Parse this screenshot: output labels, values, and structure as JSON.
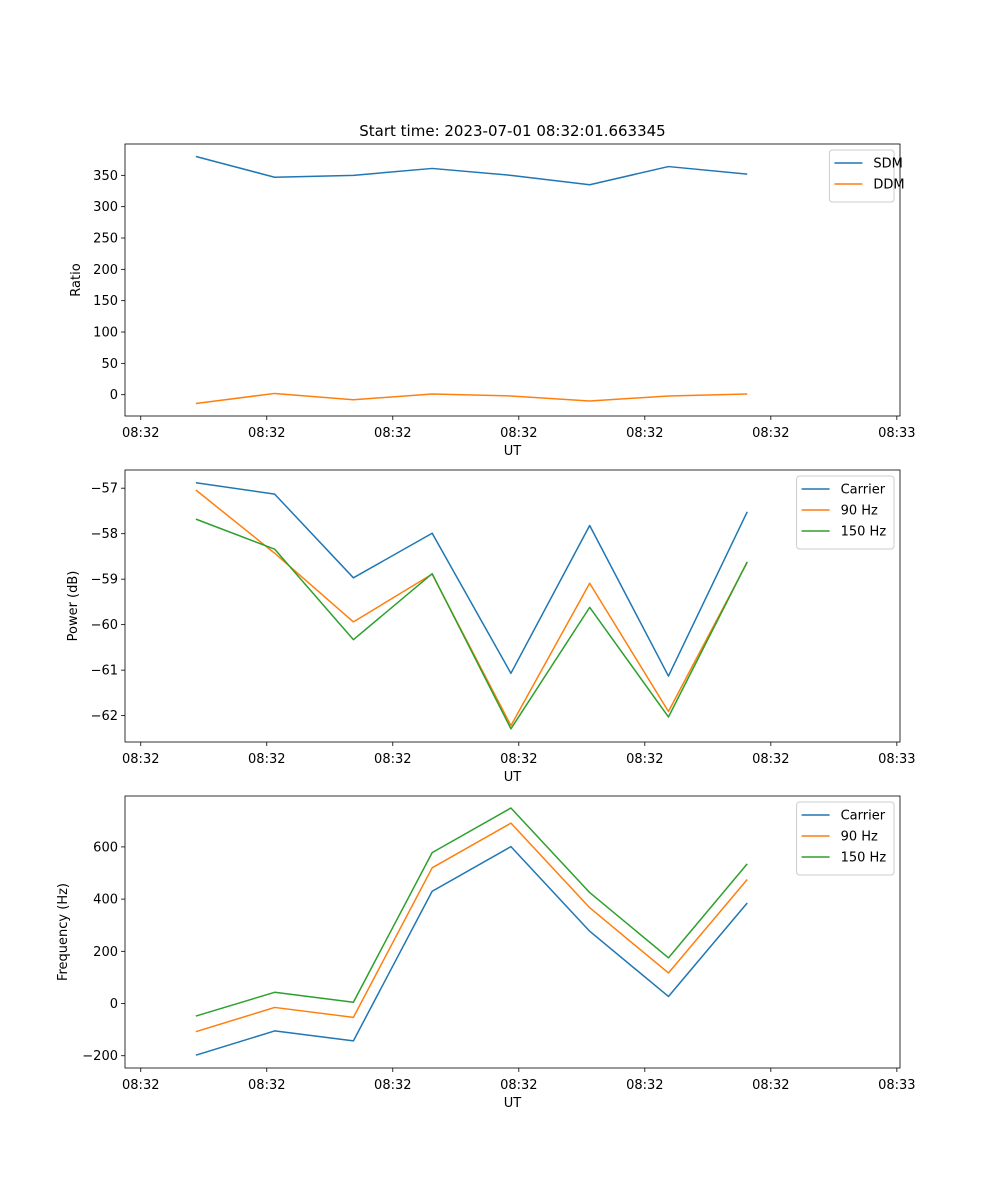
{
  "chart_data": [
    {
      "type": "line",
      "title": "Start time: 2023-07-01 08:32:01.663345",
      "xlabel": "UT",
      "ylabel": "Ratio",
      "x": [
        1.5,
        2.5,
        3.5,
        4.5,
        5.5,
        6.5,
        7.5,
        8.5
      ],
      "x_ticks": [
        0.8,
        2.4,
        4.0,
        5.6,
        7.2,
        8.8,
        10.4
      ],
      "x_tick_labels": [
        "08:32",
        "08:32",
        "08:32",
        "08:32",
        "08:32",
        "08:32",
        "08:33"
      ],
      "xlim": [
        0.6,
        10.44
      ],
      "ylim": [
        -34,
        400
      ],
      "y_ticks": [
        0,
        50,
        100,
        150,
        200,
        250,
        300,
        350
      ],
      "y_tick_labels": [
        "0",
        "50",
        "100",
        "150",
        "200",
        "250",
        "300",
        "350"
      ],
      "legend_position": "top-right",
      "series": [
        {
          "name": "SDM",
          "color": "#1f77b4",
          "values": [
            380,
            347,
            350,
            361,
            350,
            335,
            364,
            352
          ]
        },
        {
          "name": "DDM",
          "color": "#ff7f0e",
          "values": [
            -14,
            2,
            -8,
            1,
            -2,
            -10,
            -2,
            1
          ]
        }
      ]
    },
    {
      "type": "line",
      "title": "",
      "xlabel": "UT",
      "ylabel": "Power (dB)",
      "x": [
        1.5,
        2.5,
        3.5,
        4.5,
        5.5,
        6.5,
        7.5,
        8.5
      ],
      "x_ticks": [
        0.8,
        2.4,
        4.0,
        5.6,
        7.2,
        8.8,
        10.4
      ],
      "x_tick_labels": [
        "08:32",
        "08:32",
        "08:32",
        "08:32",
        "08:32",
        "08:32",
        "08:33"
      ],
      "xlim": [
        0.6,
        10.44
      ],
      "ylim": [
        -62.58,
        -56.6
      ],
      "y_ticks": [
        -62,
        -61,
        -60,
        -59,
        -58,
        -57
      ],
      "y_tick_labels": [
        "−62",
        "−61",
        "−60",
        "−59",
        "−58",
        "−57"
      ],
      "legend_position": "top-right",
      "series": [
        {
          "name": "Carrier",
          "color": "#1f77b4",
          "values": [
            -56.88,
            -57.13,
            -58.97,
            -57.99,
            -61.07,
            -57.82,
            -61.13,
            -57.52
          ]
        },
        {
          "name": "90 Hz",
          "color": "#ff7f0e",
          "values": [
            -57.04,
            -58.43,
            -59.94,
            -58.89,
            -62.22,
            -59.09,
            -61.91,
            -58.63
          ]
        },
        {
          "name": "150 Hz",
          "color": "#2ca02c",
          "values": [
            -57.68,
            -58.34,
            -60.33,
            -58.88,
            -62.29,
            -59.62,
            -62.03,
            -58.62
          ]
        }
      ]
    },
    {
      "type": "line",
      "title": "",
      "xlabel": "UT",
      "ylabel": "Frequency (Hz)",
      "x": [
        1.5,
        2.5,
        3.5,
        4.5,
        5.5,
        6.5,
        7.5,
        8.5
      ],
      "x_ticks": [
        0.8,
        2.4,
        4.0,
        5.6,
        7.2,
        8.8,
        10.4
      ],
      "x_tick_labels": [
        "08:32",
        "08:32",
        "08:32",
        "08:32",
        "08:32",
        "08:32",
        "08:33"
      ],
      "xlim": [
        0.6,
        10.44
      ],
      "ylim": [
        -247,
        795
      ],
      "y_ticks": [
        -200,
        0,
        200,
        400,
        600
      ],
      "y_tick_labels": [
        "−200",
        "0",
        "200",
        "400",
        "600"
      ],
      "legend_position": "top-right",
      "series": [
        {
          "name": "Carrier",
          "color": "#1f77b4",
          "values": [
            -198,
            -105,
            -143,
            430,
            601,
            277,
            27,
            385
          ]
        },
        {
          "name": "90 Hz",
          "color": "#ff7f0e",
          "values": [
            -108,
            -15,
            -53,
            520,
            691,
            367,
            117,
            475
          ]
        },
        {
          "name": "150 Hz",
          "color": "#2ca02c",
          "values": [
            -48,
            43,
            5,
            578,
            749,
            425,
            175,
            535
          ]
        }
      ]
    }
  ]
}
